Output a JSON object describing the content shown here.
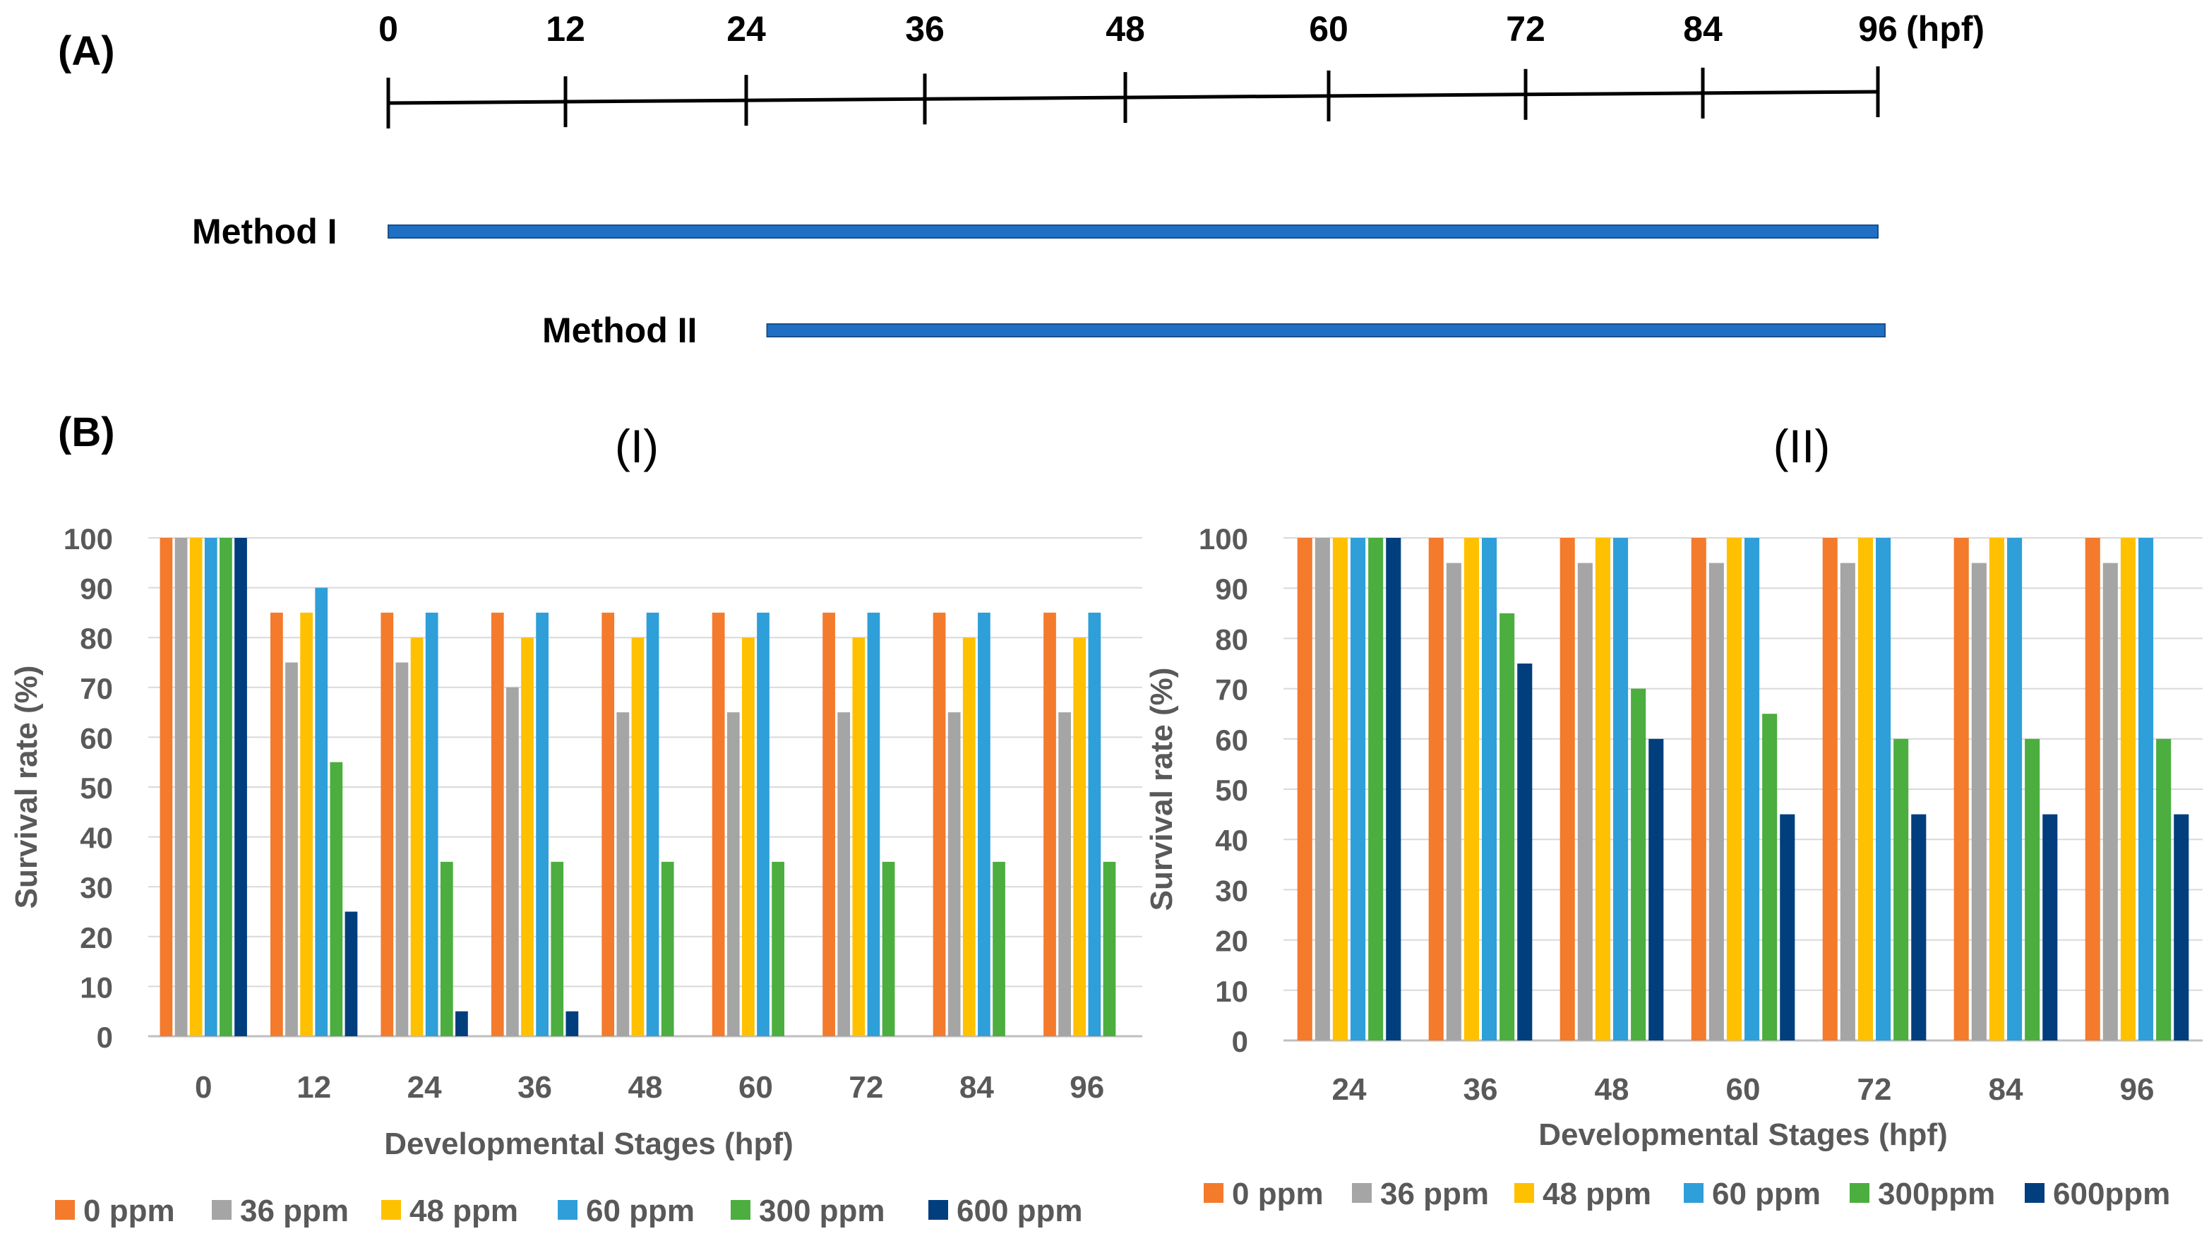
{
  "panel_a": {
    "label": "(A)",
    "unit": "(hpf)",
    "ticks": [
      "0",
      "12",
      "24",
      "36",
      "48",
      "60",
      "72",
      "84",
      "96"
    ],
    "methods": [
      {
        "label": "Method I",
        "start": 0,
        "end": 96
      },
      {
        "label": "Method II",
        "start": 24,
        "end": 96
      }
    ],
    "bar_color": "#1F6FC5"
  },
  "panel_b": {
    "label": "(B)"
  },
  "chart_data": [
    {
      "type": "bar",
      "title": "(I)",
      "xlabel": "Developmental Stages (hpf)",
      "ylabel": "Survival rate (%)",
      "ylim": [
        0,
        100
      ],
      "yticks": [
        "0",
        "10",
        "20",
        "30",
        "40",
        "50",
        "60",
        "70",
        "80",
        "90",
        "100"
      ],
      "grid": true,
      "categories": [
        "0",
        "12",
        "24",
        "36",
        "48",
        "60",
        "72",
        "84",
        "96"
      ],
      "series": [
        {
          "name": "0 ppm",
          "color": "#F47A2C",
          "values": [
            100,
            85,
            85,
            85,
            85,
            85,
            85,
            85,
            85
          ]
        },
        {
          "name": "36 ppm",
          "color": "#A5A5A5",
          "values": [
            100,
            75,
            75,
            70,
            65,
            65,
            65,
            65,
            65
          ]
        },
        {
          "name": "48 ppm",
          "color": "#FFC000",
          "values": [
            100,
            85,
            80,
            80,
            80,
            80,
            80,
            80,
            80
          ]
        },
        {
          "name": "60 ppm",
          "color": "#2E9FD9",
          "values": [
            100,
            90,
            85,
            85,
            85,
            85,
            85,
            85,
            85
          ]
        },
        {
          "name": "300 ppm",
          "color": "#4BAE3F",
          "values": [
            100,
            55,
            35,
            35,
            35,
            35,
            35,
            35,
            35
          ]
        },
        {
          "name": "600 ppm",
          "color": "#003E7E",
          "values": [
            100,
            25,
            5,
            5,
            0,
            0,
            0,
            0,
            0
          ]
        }
      ]
    },
    {
      "type": "bar",
      "title": "(II)",
      "xlabel": "Developmental Stages (hpf)",
      "ylabel": "Survival rate (%)",
      "ylim": [
        0,
        100
      ],
      "yticks": [
        "0",
        "10",
        "20",
        "30",
        "40",
        "50",
        "60",
        "70",
        "80",
        "90",
        "100"
      ],
      "grid": true,
      "categories": [
        "24",
        "36",
        "48",
        "60",
        "72",
        "84",
        "96"
      ],
      "series": [
        {
          "name": "0 ppm",
          "color": "#F47A2C",
          "values": [
            100,
            100,
            100,
            100,
            100,
            100,
            100
          ]
        },
        {
          "name": "36 ppm",
          "color": "#A5A5A5",
          "values": [
            100,
            95,
            95,
            95,
            95,
            95,
            95
          ]
        },
        {
          "name": "48 ppm",
          "color": "#FFC000",
          "values": [
            100,
            100,
            100,
            100,
            100,
            100,
            100
          ]
        },
        {
          "name": "60 ppm",
          "color": "#2E9FD9",
          "values": [
            100,
            100,
            100,
            100,
            100,
            100,
            100
          ]
        },
        {
          "name": "300ppm",
          "color": "#4BAE3F",
          "values": [
            100,
            85,
            70,
            65,
            60,
            60,
            60
          ]
        },
        {
          "name": "600ppm",
          "color": "#003E7E",
          "values": [
            100,
            75,
            60,
            45,
            45,
            45,
            45
          ]
        }
      ]
    }
  ]
}
